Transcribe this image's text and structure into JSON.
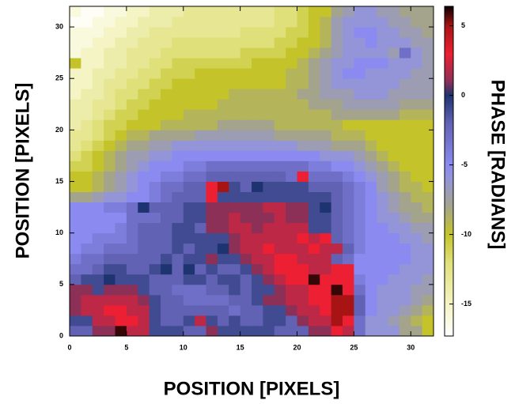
{
  "chart_data": {
    "type": "heatmap",
    "xlabel": "POSITION [PIXELS]",
    "ylabel": "POSITION [PIXELS]",
    "colorbar_label": "PHASE [RADIANS]",
    "xlim": [
      0,
      32
    ],
    "ylim": [
      0,
      32
    ],
    "xticks": [
      0,
      5,
      10,
      15,
      20,
      25,
      30
    ],
    "yticks": [
      0,
      5,
      10,
      15,
      20,
      25,
      30
    ],
    "clim": [
      -17.3,
      6.4
    ],
    "cticks": [
      5,
      0,
      -5,
      -10,
      -15
    ],
    "colormap": [
      [
        -17.3,
        "#ffffff"
      ],
      [
        -15,
        "#f4f4c4"
      ],
      [
        -12,
        "#e0e07a"
      ],
      [
        -10,
        "#c4c42a"
      ],
      [
        -8,
        "#a4a48c"
      ],
      [
        -6,
        "#9494d8"
      ],
      [
        -5,
        "#8a8af0"
      ],
      [
        -2,
        "#6262b4"
      ],
      [
        0,
        "#1e3470"
      ],
      [
        1,
        "#8c3058"
      ],
      [
        3,
        "#ec2032"
      ],
      [
        5,
        "#a81414"
      ],
      [
        6.4,
        "#0a0000"
      ]
    ],
    "z": [
      [
        -2,
        -2,
        1,
        1,
        6,
        2,
        2,
        -1,
        -1,
        -1,
        -2,
        -2,
        1,
        -1,
        -1,
        -1,
        -1,
        -1,
        -2,
        -2,
        -2,
        1,
        1,
        3,
        2,
        -3,
        -6,
        -6,
        -6,
        -8,
        -8,
        -10
      ],
      [
        -1,
        -1,
        2,
        2,
        3,
        3,
        2,
        -1,
        -2,
        -2,
        -1,
        2,
        -1,
        -2,
        -1,
        -2,
        -2,
        -1,
        -1,
        -2,
        1,
        2,
        2,
        5,
        3,
        -3,
        -6,
        -6,
        -7,
        -8,
        -9,
        -10
      ],
      [
        1,
        2,
        2,
        3,
        3,
        2,
        2,
        -1,
        -2,
        -2,
        -2,
        -2,
        -2,
        -2,
        -3,
        -2,
        -2,
        -1,
        -1,
        1,
        2,
        2,
        3,
        5,
        5,
        -2,
        -5,
        -6,
        -6,
        -7,
        -8,
        -9
      ],
      [
        1,
        2,
        2,
        2,
        2,
        2,
        1,
        -1,
        -2,
        -2,
        -3,
        -3,
        -3,
        -3,
        -2,
        -2,
        -1,
        1,
        1,
        2,
        2,
        3,
        3,
        5,
        5,
        -2,
        -5,
        -6,
        -6,
        -6,
        -7,
        -8
      ],
      [
        1,
        1,
        -1,
        1,
        1,
        1,
        -1,
        -2,
        -2,
        -3,
        -3,
        -3,
        -2,
        -2,
        -1,
        -2,
        -1,
        -1,
        1,
        2,
        2,
        3,
        3,
        6,
        3,
        -3,
        -5,
        -6,
        -6,
        -6,
        -7,
        -7
      ],
      [
        -2,
        -1,
        -1,
        0,
        -1,
        -1,
        -1,
        -2,
        -2,
        -2,
        -1,
        -1,
        -2,
        -1,
        -1,
        -2,
        -1,
        1,
        2,
        3,
        3,
        6,
        3,
        3,
        3,
        -4,
        -5,
        -5,
        -6,
        -6,
        -6,
        -7
      ],
      [
        -3,
        -3,
        -2,
        -1,
        -1,
        -2,
        -2,
        -1,
        0,
        -2,
        0,
        -2,
        -1,
        -2,
        -2,
        -1,
        1,
        2,
        3,
        3,
        3,
        2,
        2,
        3,
        3,
        -5,
        -5,
        -5,
        -5,
        -6,
        -6,
        -6
      ],
      [
        -4,
        -3,
        -3,
        -2,
        -2,
        -2,
        -2,
        -2,
        -1,
        -2,
        -1,
        -1,
        1,
        -1,
        -1,
        1,
        2,
        2,
        3,
        3,
        2,
        2,
        2,
        -2,
        -3,
        -5,
        -5,
        -5,
        -5,
        -5,
        -6,
        -6
      ],
      [
        -5,
        -4,
        -4,
        -3,
        -3,
        -3,
        -2,
        -2,
        -2,
        -1,
        -2,
        -1,
        -1,
        0,
        1,
        2,
        2,
        3,
        2,
        2,
        2,
        3,
        2,
        2,
        -2,
        -4,
        -5,
        -5,
        -5,
        -5,
        -6,
        -6
      ],
      [
        -5,
        -5,
        -4,
        -4,
        -4,
        -3,
        -2,
        -2,
        -2,
        -1,
        -1,
        -1,
        -1,
        -1,
        1,
        2,
        2,
        2,
        2,
        2,
        3,
        2,
        3,
        -2,
        -3,
        -4,
        -5,
        -5,
        -5,
        -6,
        -6,
        -7
      ],
      [
        -5,
        -5,
        -5,
        -5,
        -4,
        -3,
        -2,
        -2,
        -2,
        -1,
        -1,
        -2,
        1,
        1,
        2,
        2,
        1,
        2,
        2,
        2,
        2,
        -1,
        -1,
        -2,
        -3,
        -4,
        -5,
        -5,
        -6,
        -6,
        -7,
        -7
      ],
      [
        -5,
        -5,
        -5,
        -5,
        -5,
        -3,
        -3,
        -3,
        -2,
        -2,
        -1,
        -1,
        1,
        1,
        2,
        1,
        1,
        1,
        2,
        1,
        1,
        -1,
        -1,
        -2,
        -3,
        -4,
        -5,
        -6,
        -6,
        -7,
        -8,
        -8
      ],
      [
        -5,
        -5,
        -5,
        -4,
        -4,
        -3,
        0,
        -2,
        -2,
        -2,
        -1,
        -1,
        1,
        1,
        1,
        1,
        1,
        2,
        2,
        1,
        1,
        -1,
        0,
        -2,
        -3,
        -4,
        -5,
        -6,
        -7,
        -8,
        -8,
        -9
      ],
      [
        -8,
        -8,
        -7,
        -6,
        -6,
        -5,
        -5,
        -4,
        -3,
        -2,
        -2,
        -2,
        3,
        -1,
        -1,
        -1,
        -1,
        -1,
        -1,
        -1,
        -1,
        -1,
        -1,
        -2,
        -3,
        -4,
        -5,
        -6,
        -7,
        -8,
        -9,
        -9
      ],
      [
        -10,
        -10,
        -9,
        -8,
        -7,
        -6,
        -5,
        -4,
        -3,
        -3,
        -2,
        -2,
        3,
        5,
        -1,
        -2,
        0,
        -1,
        -1,
        -1,
        -1,
        -2,
        -2,
        -2,
        -3,
        -4,
        -5,
        -7,
        -8,
        -9,
        -9,
        -10
      ],
      [
        -10,
        -10,
        -9,
        -8,
        -7,
        -6,
        -5,
        -5,
        -4,
        -4,
        -3,
        -3,
        -2,
        -2,
        -2,
        -2,
        -2,
        -2,
        -2,
        -3,
        3,
        -3,
        -3,
        -3,
        -4,
        -5,
        -6,
        -7,
        -8,
        -9,
        -10,
        -10
      ],
      [
        -11,
        -11,
        -10,
        -9,
        -8,
        -7,
        -6,
        -5,
        -5,
        -5,
        -4,
        -4,
        -3,
        -3,
        -3,
        -3,
        -3,
        -3,
        -3,
        -3,
        -3,
        -4,
        -4,
        -5,
        -5,
        -6,
        -7,
        -8,
        -9,
        -10,
        -10,
        -10
      ],
      [
        -12,
        -11,
        -10,
        -9,
        -8,
        -7,
        -7,
        -6,
        -6,
        -5,
        -5,
        -5,
        -5,
        -5,
        -5,
        -5,
        -5,
        -5,
        -5,
        -5,
        -5,
        -5,
        -6,
        -6,
        -6,
        -7,
        -8,
        -9,
        -10,
        -10,
        -10,
        -10
      ],
      [
        -13,
        -12,
        -11,
        -10,
        -9,
        -8,
        -8,
        -7,
        -7,
        -6,
        -6,
        -6,
        -6,
        -6,
        -6,
        -6,
        -6,
        -6,
        -6,
        -6,
        -7,
        -7,
        -7,
        -8,
        -8,
        -8,
        -9,
        -10,
        -10,
        -10,
        -10,
        -10
      ],
      [
        -13,
        -13,
        -12,
        -11,
        -10,
        -9,
        -9,
        -8,
        -8,
        -8,
        -8,
        -7,
        -7,
        -7,
        -7,
        -7,
        -7,
        -7,
        -8,
        -8,
        -8,
        -8,
        -8,
        -9,
        -9,
        -9,
        -10,
        -10,
        -10,
        -10,
        -10,
        -10
      ],
      [
        -14,
        -13,
        -12,
        -11,
        -11,
        -10,
        -10,
        -10,
        -9,
        -9,
        -9,
        -9,
        -9,
        -8,
        -8,
        -8,
        -8,
        -8,
        -9,
        -9,
        -9,
        -9,
        -9,
        -9,
        -10,
        -10,
        -10,
        -10,
        -10,
        -10,
        -10,
        -10
      ],
      [
        -14,
        -14,
        -13,
        -12,
        -11,
        -11,
        -10,
        -10,
        -10,
        -10,
        -9,
        -9,
        -9,
        -9,
        -9,
        -9,
        -9,
        -9,
        -9,
        -9,
        -9,
        -9,
        -9,
        -8,
        -8,
        -8,
        -8,
        -8,
        -8,
        -9,
        -9,
        -9
      ],
      [
        -14,
        -14,
        -13,
        -13,
        -12,
        -11,
        -11,
        -10,
        -10,
        -10,
        -10,
        -10,
        -10,
        -9,
        -9,
        -9,
        -9,
        -9,
        -9,
        -9,
        -9,
        -8,
        -8,
        -8,
        -7,
        -7,
        -7,
        -7,
        -7,
        -8,
        -8,
        -8
      ],
      [
        -15,
        -14,
        -14,
        -13,
        -12,
        -12,
        -11,
        -11,
        -10,
        -10,
        -10,
        -10,
        -10,
        -10,
        -9,
        -9,
        -9,
        -9,
        -9,
        -9,
        -8,
        -8,
        -7,
        -7,
        -7,
        -6,
        -6,
        -6,
        -7,
        -7,
        -7,
        -7
      ],
      [
        -15,
        -15,
        -14,
        -13,
        -13,
        -12,
        -12,
        -11,
        -11,
        -10,
        -10,
        -10,
        -10,
        -10,
        -10,
        -10,
        -10,
        -10,
        -10,
        -9,
        -9,
        -8,
        -7,
        -6,
        -6,
        -6,
        -6,
        -6,
        -6,
        -7,
        -7,
        -7
      ],
      [
        -15,
        -15,
        -14,
        -14,
        -13,
        -13,
        -12,
        -12,
        -11,
        -11,
        -11,
        -10,
        -10,
        -10,
        -10,
        -10,
        -10,
        -10,
        -10,
        -9,
        -9,
        -8,
        -7,
        -6,
        -5,
        -5,
        -6,
        -6,
        -6,
        -6,
        -7,
        -7
      ],
      [
        -10,
        -15,
        -15,
        -14,
        -14,
        -13,
        -13,
        -12,
        -12,
        -11,
        -11,
        -11,
        -11,
        -11,
        -11,
        -11,
        -10,
        -10,
        -10,
        -10,
        -9,
        -8,
        -7,
        -6,
        -6,
        -5,
        -5,
        -5,
        -6,
        -6,
        -6,
        -7
      ],
      [
        -16,
        -15,
        -15,
        -14,
        -14,
        -13,
        -13,
        -13,
        -12,
        -12,
        -12,
        -12,
        -12,
        -12,
        -12,
        -11,
        -11,
        -11,
        -11,
        -10,
        -10,
        -9,
        -8,
        -7,
        -6,
        -6,
        -6,
        -6,
        -7,
        -3,
        -6,
        -7
      ],
      [
        -16,
        -16,
        -15,
        -15,
        -14,
        -14,
        -13,
        -13,
        -13,
        -12,
        -12,
        -12,
        -12,
        -12,
        -12,
        -12,
        -12,
        -12,
        -11,
        -11,
        -10,
        -10,
        -9,
        -7,
        -6,
        -6,
        -5,
        -6,
        -6,
        -6,
        -7,
        -7
      ],
      [
        -16,
        -16,
        -16,
        -15,
        -15,
        -14,
        -14,
        -13,
        -13,
        -13,
        -13,
        -13,
        -13,
        -13,
        -13,
        -12,
        -12,
        -12,
        -12,
        -11,
        -11,
        -10,
        -9,
        -7,
        -6,
        -5,
        -5,
        -6,
        -6,
        -7,
        -7,
        -8
      ],
      [
        -17,
        -17,
        -16,
        -16,
        -15,
        -15,
        -14,
        -14,
        -14,
        -13,
        -13,
        -13,
        -13,
        -13,
        -13,
        -13,
        -13,
        -13,
        -12,
        -12,
        -11,
        -10,
        -9,
        -7,
        -6,
        -6,
        -6,
        -6,
        -7,
        -7,
        -8,
        -8
      ],
      [
        -16,
        -17,
        -17,
        -16,
        -16,
        -15,
        -15,
        -14,
        -14,
        -14,
        -13,
        -13,
        -13,
        -13,
        -13,
        -13,
        -13,
        -13,
        -12,
        -12,
        -11,
        -10,
        -10,
        -8,
        -7,
        -6,
        -6,
        -7,
        -7,
        -8,
        -8,
        -8
      ]
    ]
  }
}
